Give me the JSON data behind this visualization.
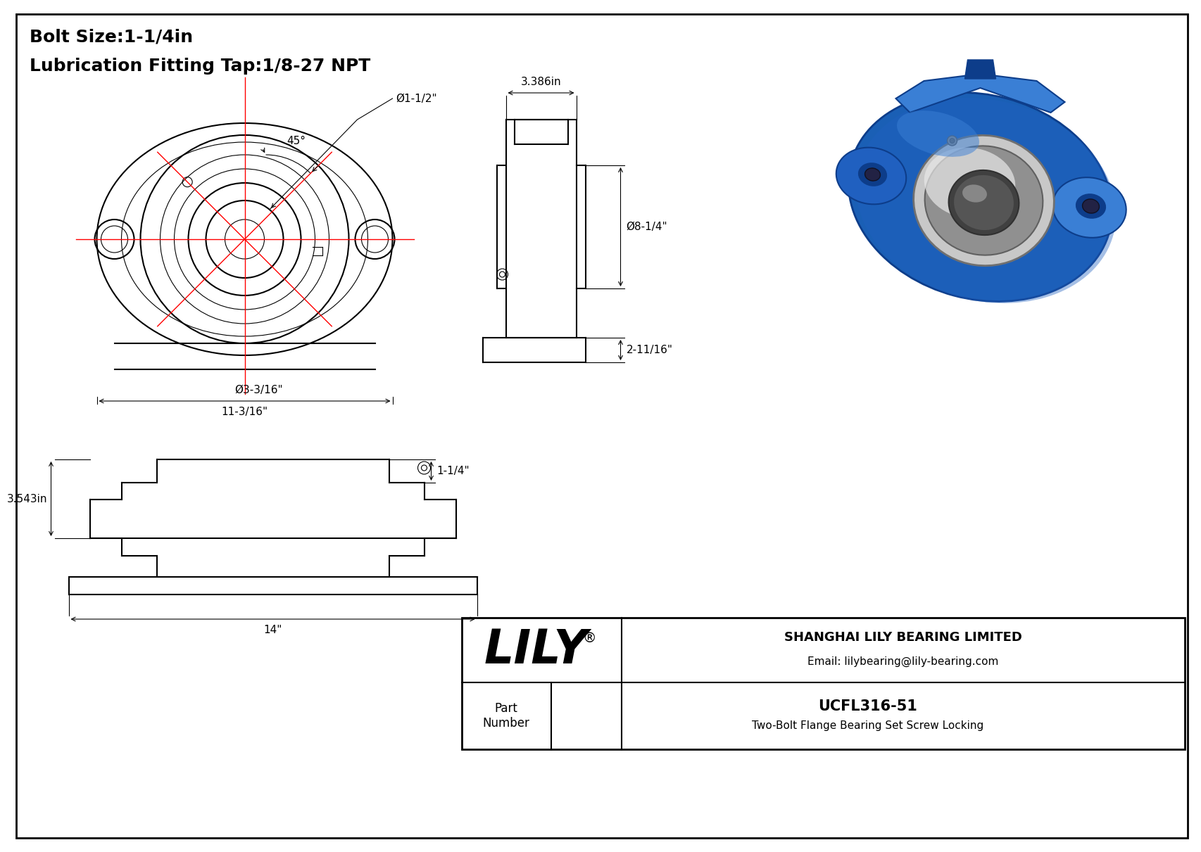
{
  "bg_color": "#ffffff",
  "line_color": "#000000",
  "red_color": "#ff0000",
  "title_line1": "Bolt Size:1-1/4in",
  "title_line2": "Lubrication Fitting Tap:1/8-27 NPT",
  "title_fontsize": 18,
  "company_name": "SHANGHAI LILY BEARING LIMITED",
  "company_email": "Email: lilybearing@lily-bearing.com",
  "part_label": "Part\nNumber",
  "part_number": "UCFL316-51",
  "part_desc": "Two-Bolt Flange Bearing Set Screw Locking",
  "brand": "LILY",
  "brand_symbol": "®",
  "dim_45": "45°",
  "dim_bore": "Ø1-1/2\"",
  "dim_bolt_circle": "Ø3-3/16\"",
  "dim_width": "11-3/16\"",
  "dim_flange_od": "3.386in",
  "dim_height": "Ø8-1/4\"",
  "dim_base": "2-11/16\"",
  "dim_shaft": "1-1/4\"",
  "dim_depth": "3.543in",
  "dim_length": "14\"",
  "blue_main": "#1a5fb5",
  "blue_dark": "#0d3d8a",
  "blue_light": "#3a7fd5",
  "blue_mid": "#2060c0",
  "silver": "#c8c8c8",
  "silver_dark": "#909090",
  "silver_light": "#e8e8e8"
}
